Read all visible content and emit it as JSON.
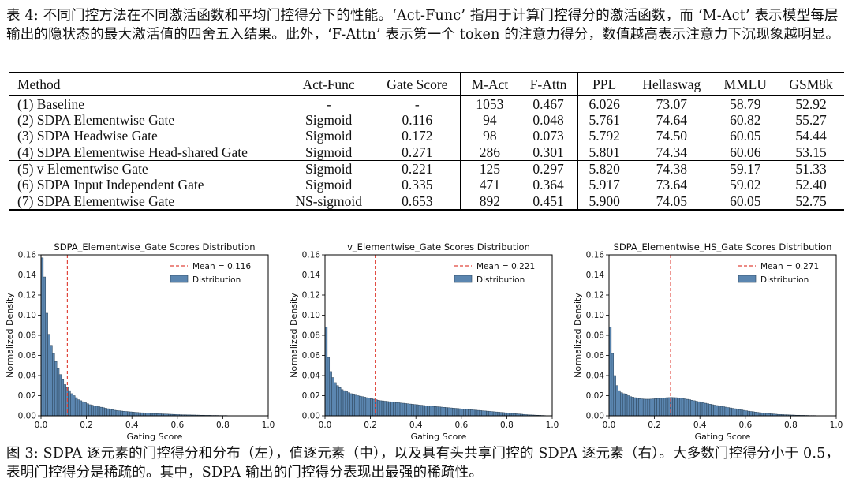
{
  "table_caption": "表 4: 不同门控方法在不同激活函数和平均门控得分下的性能。‘Act-Func’ 指用于计算门控得分的激活函数，而 ‘M-Act’ 表示模型每层输出的隐状态的最大激活值的四舍五入结果。此外，‘F-Attn’ 表示第一个 token 的注意力得分，数值越高表示注意力下沉现象越明显。",
  "table": {
    "headers": [
      "Method",
      "Act-Func",
      "Gate Score",
      "M-Act",
      "F-Attn",
      "PPL",
      "Hellaswag",
      "MMLU",
      "GSM8k"
    ],
    "groups": [
      [
        [
          "(1) Baseline",
          "-",
          "-",
          "1053",
          "0.467",
          "6.026",
          "73.07",
          "58.79",
          "52.92"
        ],
        [
          "(2) SDPA Elementwise Gate",
          "Sigmoid",
          "0.116",
          "94",
          "0.048",
          "5.761",
          "74.64",
          "60.82",
          "55.27"
        ],
        [
          "(3) SDPA Headwise Gate",
          "Sigmoid",
          "0.172",
          "98",
          "0.073",
          "5.792",
          "74.50",
          "60.05",
          "54.44"
        ]
      ],
      [
        [
          "(4) SDPA Elementwise Head-shared Gate",
          "Sigmoid",
          "0.271",
          "286",
          "0.301",
          "5.801",
          "74.34",
          "60.06",
          "53.15"
        ]
      ],
      [
        [
          "(5) v Elementwise Gate",
          "Sigmoid",
          "0.221",
          "125",
          "0.297",
          "5.820",
          "74.38",
          "59.17",
          "51.33"
        ],
        [
          "(6) SDPA Input Independent Gate",
          "Sigmoid",
          "0.335",
          "471",
          "0.364",
          "5.917",
          "73.64",
          "59.02",
          "52.40"
        ]
      ],
      [
        [
          "(7) SDPA Elementwise Gate",
          "NS-sigmoid",
          "0.653",
          "892",
          "0.451",
          "5.900",
          "74.05",
          "60.05",
          "52.75"
        ]
      ]
    ]
  },
  "figure_caption": "图 3: SDPA 逐元素的门控得分和分布（左），值逐元素（中），以及具有头共享门控的 SDPA 逐元素（右）。大多数门控得分小于 0.5，表明门控得分是稀疏的。其中，SDPA 输出的门控得分表现出最强的稀疏性。",
  "colors": {
    "bar_fill": "#5b86b0",
    "bar_edge": "#2b4257",
    "mean_line": "#e0463c"
  },
  "chart_data": [
    {
      "type": "bar",
      "title": "SDPA_Elementwise_Gate Scores Distribution",
      "xlabel": "Gating Score",
      "ylabel": "Normalized Density",
      "xlim": [
        0,
        1
      ],
      "ylim": [
        0,
        0.16
      ],
      "xticks": [
        "0.0",
        "0.2",
        "0.4",
        "0.6",
        "0.8",
        "1.0"
      ],
      "yticks": [
        "0.00",
        "0.02",
        "0.04",
        "0.06",
        "0.08",
        "0.10",
        "0.12",
        "0.14",
        "0.16"
      ],
      "mean": 0.116,
      "legend": [
        "Mean = 0.116",
        "Distribution"
      ],
      "legend_position": "top-right",
      "bins": 100,
      "values": [
        0.157,
        0.138,
        0.102,
        0.081,
        0.07,
        0.062,
        0.054,
        0.047,
        0.041,
        0.036,
        0.031,
        0.028,
        0.025,
        0.022,
        0.02,
        0.018,
        0.016,
        0.015,
        0.014,
        0.013,
        0.012,
        0.011,
        0.0105,
        0.01,
        0.0095,
        0.009,
        0.0085,
        0.008,
        0.0075,
        0.007,
        0.0065,
        0.006,
        0.0055,
        0.0052,
        0.005,
        0.0047,
        0.0045,
        0.0043,
        0.0041,
        0.0039,
        0.0037,
        0.0035,
        0.0033,
        0.0031,
        0.003,
        0.0028,
        0.0027,
        0.0025,
        0.0024,
        0.0023,
        0.0022,
        0.0021,
        0.002,
        0.0019,
        0.0018,
        0.0017,
        0.0016,
        0.0015,
        0.0014,
        0.0013,
        0.0012,
        0.0011,
        0.001,
        0.001,
        0.0009,
        0.0009,
        0.0008,
        0.0008,
        0.0007,
        0.0007,
        0.0006,
        0.0006,
        0.0005,
        0.0005,
        0.0005,
        0.0004,
        0.0004,
        0.0004,
        0.0003,
        0.0003,
        0.0003,
        0.0003,
        0.0002,
        0.0002,
        0.0002,
        0.0002,
        0.0002,
        0.0001,
        0.0001,
        0.0001,
        0.0001,
        0.0001,
        0.0001,
        0.0001,
        0.0001,
        0.0001,
        0.0001,
        0.0001,
        0.0001,
        0.0001
      ]
    },
    {
      "type": "bar",
      "title": "v_Elementwise_Gate Scores Distribution",
      "xlabel": "Gating Score",
      "ylabel": "Normalized Density",
      "xlim": [
        0,
        1
      ],
      "ylim": [
        0,
        0.16
      ],
      "xticks": [
        "0.0",
        "0.2",
        "0.4",
        "0.6",
        "0.8",
        "1.0"
      ],
      "yticks": [
        "0.00",
        "0.02",
        "0.04",
        "0.06",
        "0.08",
        "0.10",
        "0.12",
        "0.14",
        "0.16"
      ],
      "mean": 0.221,
      "legend": [
        "Mean = 0.221",
        "Distribution"
      ],
      "legend_position": "top-right",
      "bins": 100,
      "values": [
        0.088,
        0.058,
        0.044,
        0.038,
        0.033,
        0.03,
        0.028,
        0.026,
        0.025,
        0.024,
        0.023,
        0.022,
        0.021,
        0.0205,
        0.02,
        0.0195,
        0.019,
        0.0185,
        0.018,
        0.0175,
        0.017,
        0.0165,
        0.016,
        0.0155,
        0.015,
        0.0148,
        0.0145,
        0.0142,
        0.014,
        0.0137,
        0.0135,
        0.0132,
        0.013,
        0.0127,
        0.0125,
        0.0122,
        0.012,
        0.0117,
        0.0115,
        0.0112,
        0.011,
        0.0107,
        0.0105,
        0.0102,
        0.01,
        0.0098,
        0.0096,
        0.0094,
        0.0092,
        0.009,
        0.0088,
        0.0086,
        0.0084,
        0.0082,
        0.008,
        0.0078,
        0.0076,
        0.0074,
        0.0072,
        0.007,
        0.0068,
        0.0066,
        0.0064,
        0.0062,
        0.006,
        0.0058,
        0.0056,
        0.0054,
        0.0052,
        0.005,
        0.0048,
        0.0046,
        0.0044,
        0.0042,
        0.004,
        0.0038,
        0.0036,
        0.0034,
        0.0032,
        0.003,
        0.0028,
        0.0026,
        0.0024,
        0.0022,
        0.002,
        0.0018,
        0.0016,
        0.0014,
        0.0012,
        0.001,
        0.0009,
        0.0008,
        0.0007,
        0.0006,
        0.0005,
        0.0004,
        0.0003,
        0.0002,
        0.0002,
        0.0001
      ]
    },
    {
      "type": "bar",
      "title": "SDPA_Elementwise_HS_Gate Scores Distribution",
      "xlabel": "Gating Score",
      "ylabel": "Normalized Density",
      "xlim": [
        0,
        1
      ],
      "ylim": [
        0,
        0.16
      ],
      "xticks": [
        "0.0",
        "0.2",
        "0.4",
        "0.6",
        "0.8",
        "1.0"
      ],
      "yticks": [
        "0.00",
        "0.02",
        "0.04",
        "0.06",
        "0.08",
        "0.10",
        "0.12",
        "0.14",
        "0.16"
      ],
      "mean": 0.271,
      "legend": [
        "Mean = 0.271",
        "Distribution"
      ],
      "legend_position": "top-right",
      "bins": 100,
      "values": [
        0.088,
        0.062,
        0.04,
        0.03,
        0.025,
        0.023,
        0.022,
        0.021,
        0.02,
        0.019,
        0.0185,
        0.018,
        0.0175,
        0.017,
        0.0168,
        0.0166,
        0.0165,
        0.0165,
        0.0166,
        0.0168,
        0.017,
        0.0172,
        0.0174,
        0.0176,
        0.0178,
        0.018,
        0.0181,
        0.0182,
        0.0181,
        0.018,
        0.0178,
        0.0175,
        0.0172,
        0.0168,
        0.0164,
        0.016,
        0.0155,
        0.015,
        0.0145,
        0.014,
        0.0135,
        0.013,
        0.0125,
        0.012,
        0.0115,
        0.011,
        0.0106,
        0.0102,
        0.0098,
        0.0094,
        0.009,
        0.0086,
        0.0082,
        0.0078,
        0.0074,
        0.007,
        0.0066,
        0.0062,
        0.0058,
        0.0054,
        0.005,
        0.0046,
        0.0043,
        0.004,
        0.0037,
        0.0034,
        0.0031,
        0.0028,
        0.0026,
        0.0024,
        0.0022,
        0.002,
        0.0018,
        0.0016,
        0.0014,
        0.0013,
        0.0012,
        0.0011,
        0.001,
        0.0009,
        0.0008,
        0.0007,
        0.0006,
        0.0006,
        0.0005,
        0.0005,
        0.0004,
        0.0004,
        0.0003,
        0.0003,
        0.0003,
        0.0002,
        0.0002,
        0.0002,
        0.0002,
        0.0001,
        0.0001,
        0.0001,
        0.0001,
        0.0001
      ]
    }
  ]
}
